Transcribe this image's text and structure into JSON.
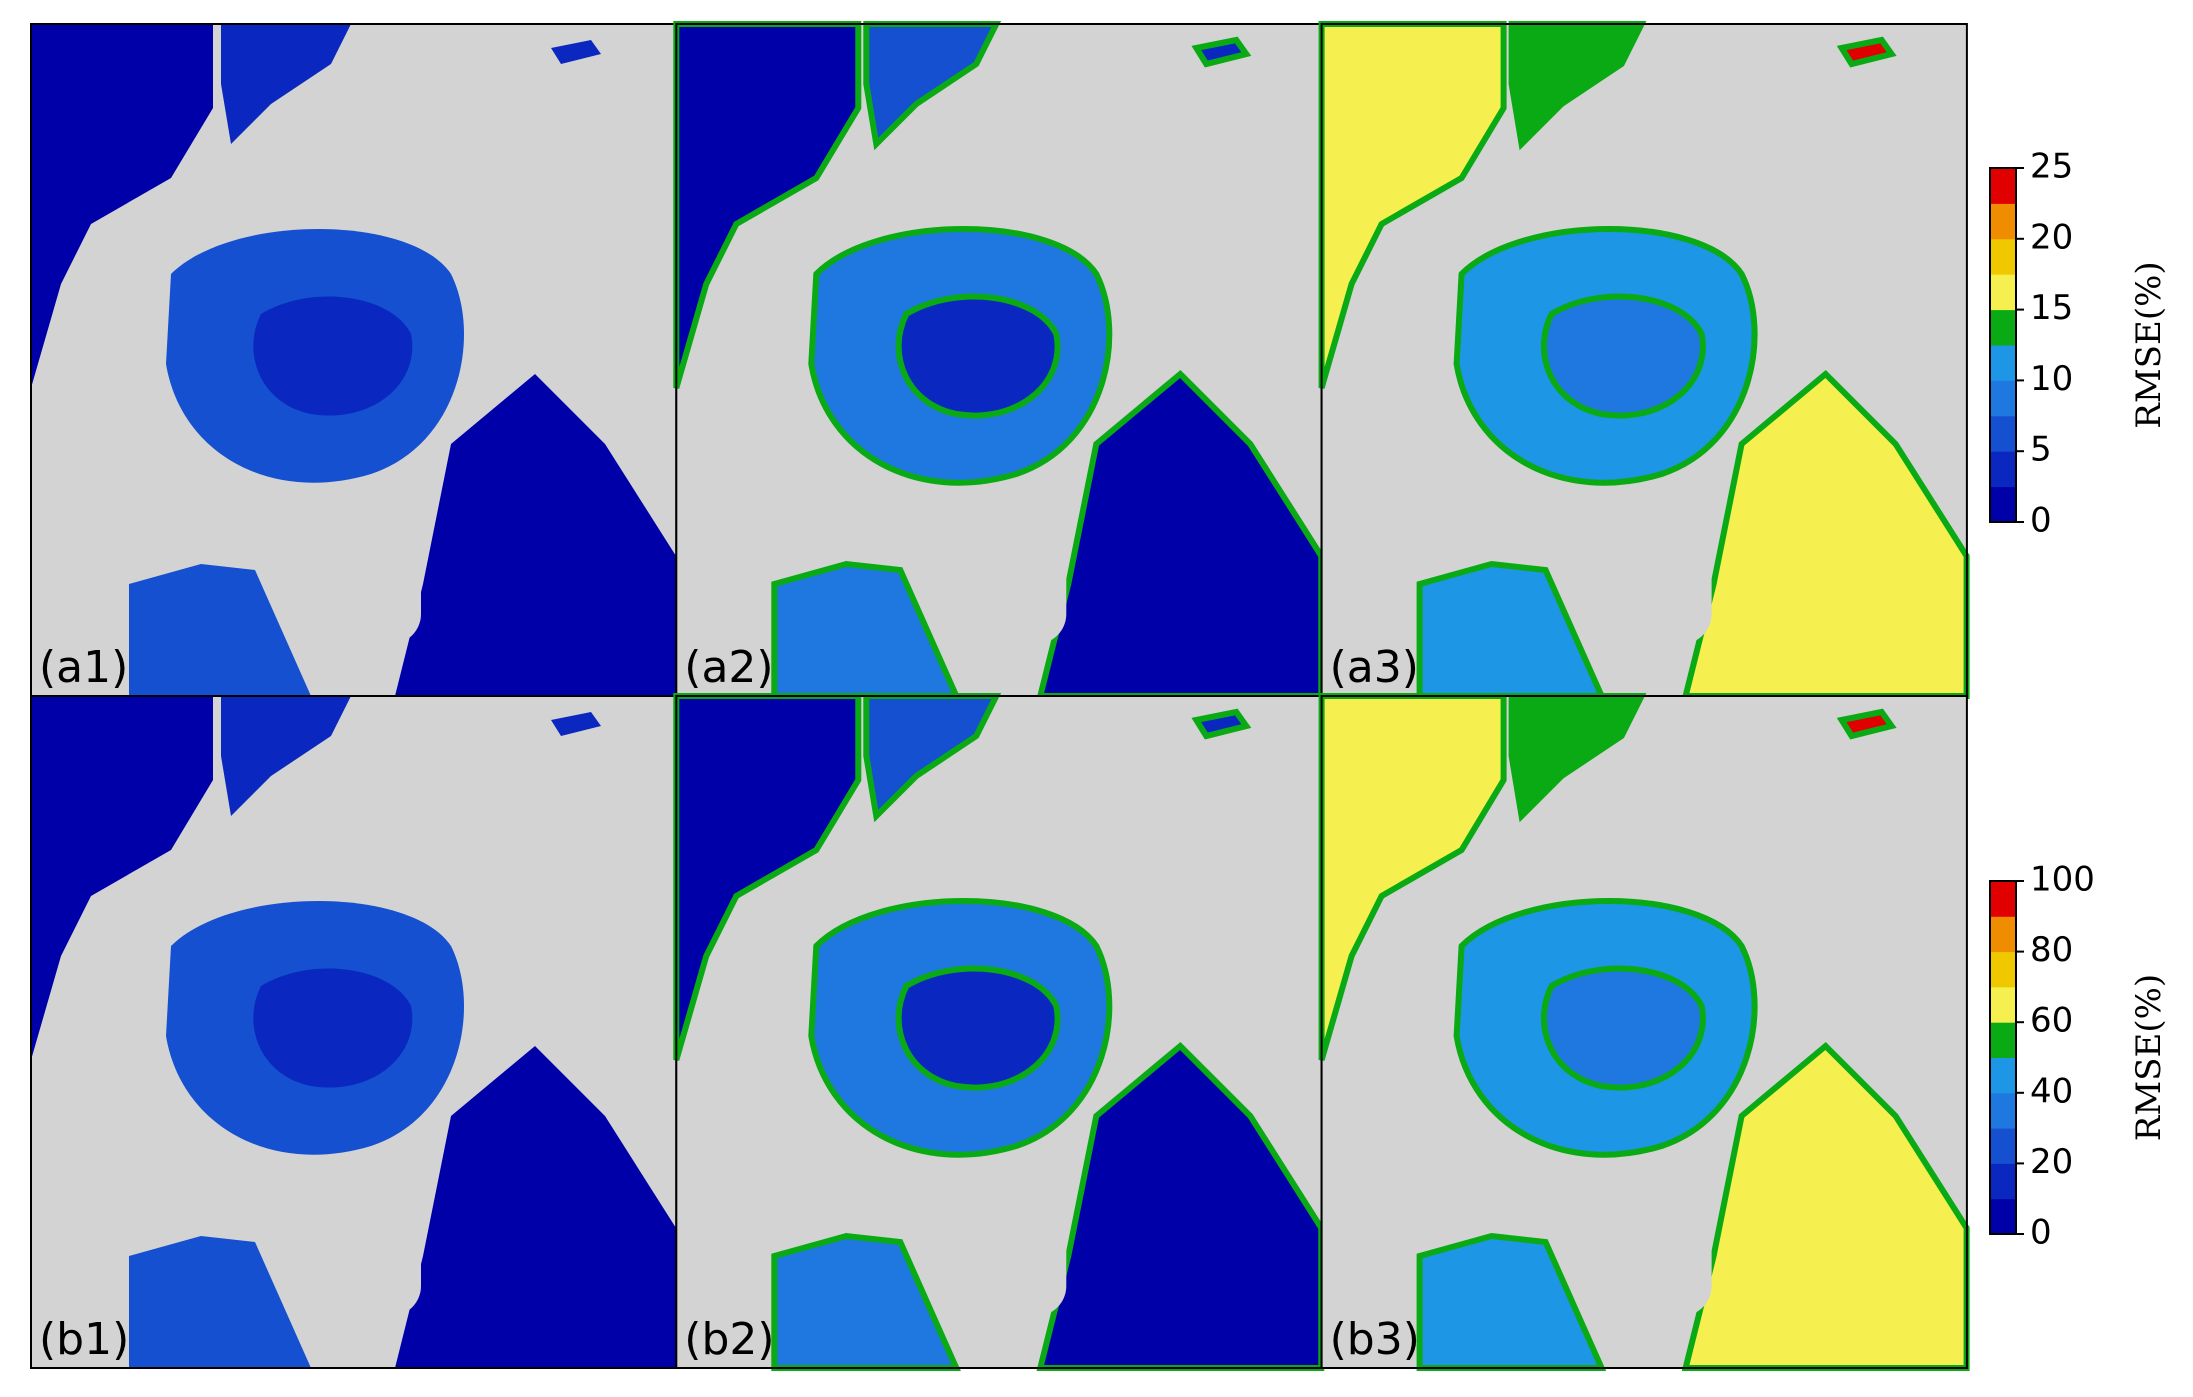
{
  "panels": [
    {
      "label": "(a1)"
    },
    {
      "label": "(a2)"
    },
    {
      "label": "(a3)"
    },
    {
      "label": "(b1)"
    },
    {
      "label": "(b2)"
    },
    {
      "label": "(b3)"
    }
  ],
  "colorbars": [
    {
      "label": "RMSE(%)",
      "lim": [
        0,
        25
      ],
      "ticks": [
        0,
        5,
        10,
        15,
        20,
        25
      ],
      "colors": [
        "#0000a8",
        "#0a28c0",
        "#1450d0",
        "#1e78e0",
        "#1e96e6",
        "#0aaa14",
        "#f5f050",
        "#f0c800",
        "#f08c00",
        "#e00000"
      ]
    },
    {
      "label": "RMSE(%)",
      "lim": [
        0,
        100
      ],
      "ticks": [
        0,
        20,
        40,
        60,
        80,
        100
      ],
      "colors": [
        "#0000a8",
        "#0a28c0",
        "#1450d0",
        "#1e78e0",
        "#1e96e6",
        "#0aaa14",
        "#f5f050",
        "#f0c800",
        "#f08c00",
        "#e00000"
      ]
    }
  ]
}
